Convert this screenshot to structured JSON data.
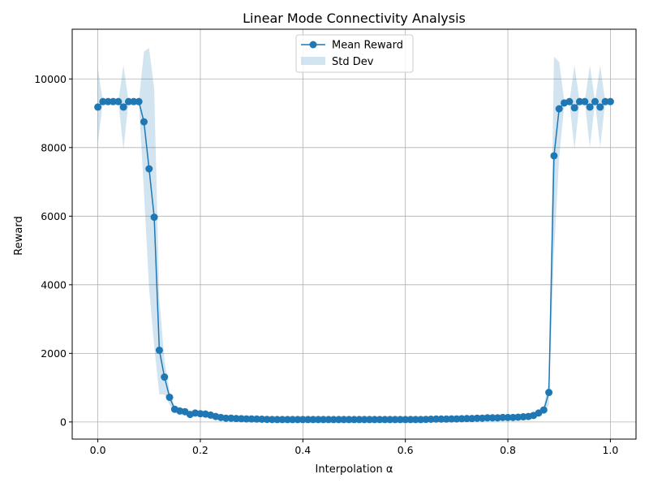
{
  "chart_data": {
    "type": "line",
    "title": "Linear Mode Connectivity Analysis",
    "xlabel": "Interpolation α",
    "ylabel": "Reward",
    "xlim": [
      -0.05,
      1.05
    ],
    "ylim": [
      -500,
      11450
    ],
    "xticks": [
      0.0,
      0.2,
      0.4,
      0.6,
      0.8,
      1.0
    ],
    "xtick_labels": [
      "0.0",
      "0.2",
      "0.4",
      "0.6",
      "0.8",
      "1.0"
    ],
    "yticks": [
      0,
      2000,
      4000,
      6000,
      8000,
      10000
    ],
    "ytick_labels": [
      "0",
      "2000",
      "4000",
      "6000",
      "8000",
      "10000"
    ],
    "grid": true,
    "legend_position": "top-center",
    "colors": {
      "line": "#1f77b4",
      "band": "#1f77b4"
    },
    "series": [
      {
        "name": "Mean Reward",
        "kind": "line-marker",
        "x": [
          0.0,
          0.01,
          0.02,
          0.03,
          0.04,
          0.05,
          0.06,
          0.07,
          0.08,
          0.09,
          0.1,
          0.11,
          0.12,
          0.13,
          0.14,
          0.15,
          0.16,
          0.17,
          0.18,
          0.19,
          0.2,
          0.21,
          0.22,
          0.23,
          0.24,
          0.25,
          0.26,
          0.27,
          0.28,
          0.29,
          0.3,
          0.31,
          0.32,
          0.33,
          0.34,
          0.35,
          0.36,
          0.37,
          0.38,
          0.39,
          0.4,
          0.41,
          0.42,
          0.43,
          0.44,
          0.45,
          0.46,
          0.47,
          0.48,
          0.49,
          0.5,
          0.51,
          0.52,
          0.53,
          0.54,
          0.55,
          0.56,
          0.57,
          0.58,
          0.59,
          0.6,
          0.61,
          0.62,
          0.63,
          0.64,
          0.65,
          0.66,
          0.67,
          0.68,
          0.69,
          0.7,
          0.71,
          0.72,
          0.73,
          0.74,
          0.75,
          0.76,
          0.77,
          0.78,
          0.79,
          0.8,
          0.81,
          0.82,
          0.83,
          0.84,
          0.85,
          0.86,
          0.87,
          0.88,
          0.89,
          0.9,
          0.91,
          0.92,
          0.93,
          0.94,
          0.95,
          0.96,
          0.97,
          0.98,
          0.99,
          1.0
        ],
        "y": [
          9180,
          9340,
          9340,
          9340,
          9340,
          9180,
          9340,
          9340,
          9340,
          8750,
          7380,
          5970,
          2090,
          1310,
          720,
          370,
          320,
          300,
          220,
          260,
          240,
          230,
          200,
          160,
          130,
          110,
          110,
          100,
          95,
          90,
          88,
          85,
          80,
          75,
          72,
          70,
          70,
          70,
          70,
          70,
          70,
          70,
          70,
          70,
          70,
          70,
          70,
          70,
          70,
          70,
          70,
          70,
          70,
          70,
          70,
          70,
          70,
          70,
          70,
          70,
          70,
          70,
          70,
          70,
          75,
          80,
          85,
          85,
          85,
          90,
          90,
          95,
          100,
          100,
          110,
          110,
          120,
          120,
          120,
          130,
          130,
          130,
          140,
          150,
          160,
          190,
          260,
          350,
          860,
          7760,
          9130,
          9300,
          9340,
          9160,
          9340,
          9340,
          9180,
          9340,
          9180,
          9340,
          9340
        ]
      },
      {
        "name": "Std Dev",
        "kind": "band",
        "x": [
          0.0,
          0.01,
          0.02,
          0.03,
          0.04,
          0.05,
          0.06,
          0.07,
          0.08,
          0.09,
          0.1,
          0.11,
          0.12,
          0.13,
          0.14,
          0.15,
          0.16,
          0.17,
          0.18,
          0.19,
          0.2,
          0.22,
          0.25,
          0.3,
          0.35,
          0.4,
          0.5,
          0.6,
          0.7,
          0.75,
          0.8,
          0.85,
          0.86,
          0.87,
          0.88,
          0.89,
          0.9,
          0.91,
          0.92,
          0.93,
          0.94,
          0.95,
          0.96,
          0.97,
          0.98,
          0.99,
          1.0
        ],
        "upper": [
          10300,
          9340,
          9340,
          9340,
          9340,
          10400,
          9340,
          9340,
          9340,
          10800,
          10900,
          9700,
          3600,
          1800,
          900,
          450,
          380,
          350,
          300,
          300,
          280,
          250,
          140,
          110,
          90,
          80,
          80,
          80,
          100,
          130,
          160,
          240,
          320,
          450,
          1200,
          10650,
          10500,
          9360,
          9340,
          10400,
          9340,
          9340,
          10400,
          9340,
          10400,
          9340,
          9340
        ],
        "lower": [
          8100,
          9340,
          9340,
          9340,
          9340,
          7950,
          9340,
          9340,
          9340,
          6700,
          3900,
          2200,
          800,
          800,
          500,
          290,
          260,
          250,
          160,
          220,
          200,
          180,
          80,
          70,
          60,
          60,
          60,
          60,
          70,
          90,
          100,
          140,
          200,
          250,
          500,
          4900,
          7700,
          9240,
          9340,
          7950,
          9340,
          9340,
          8000,
          9340,
          8000,
          9340,
          9340
        ]
      }
    ]
  }
}
